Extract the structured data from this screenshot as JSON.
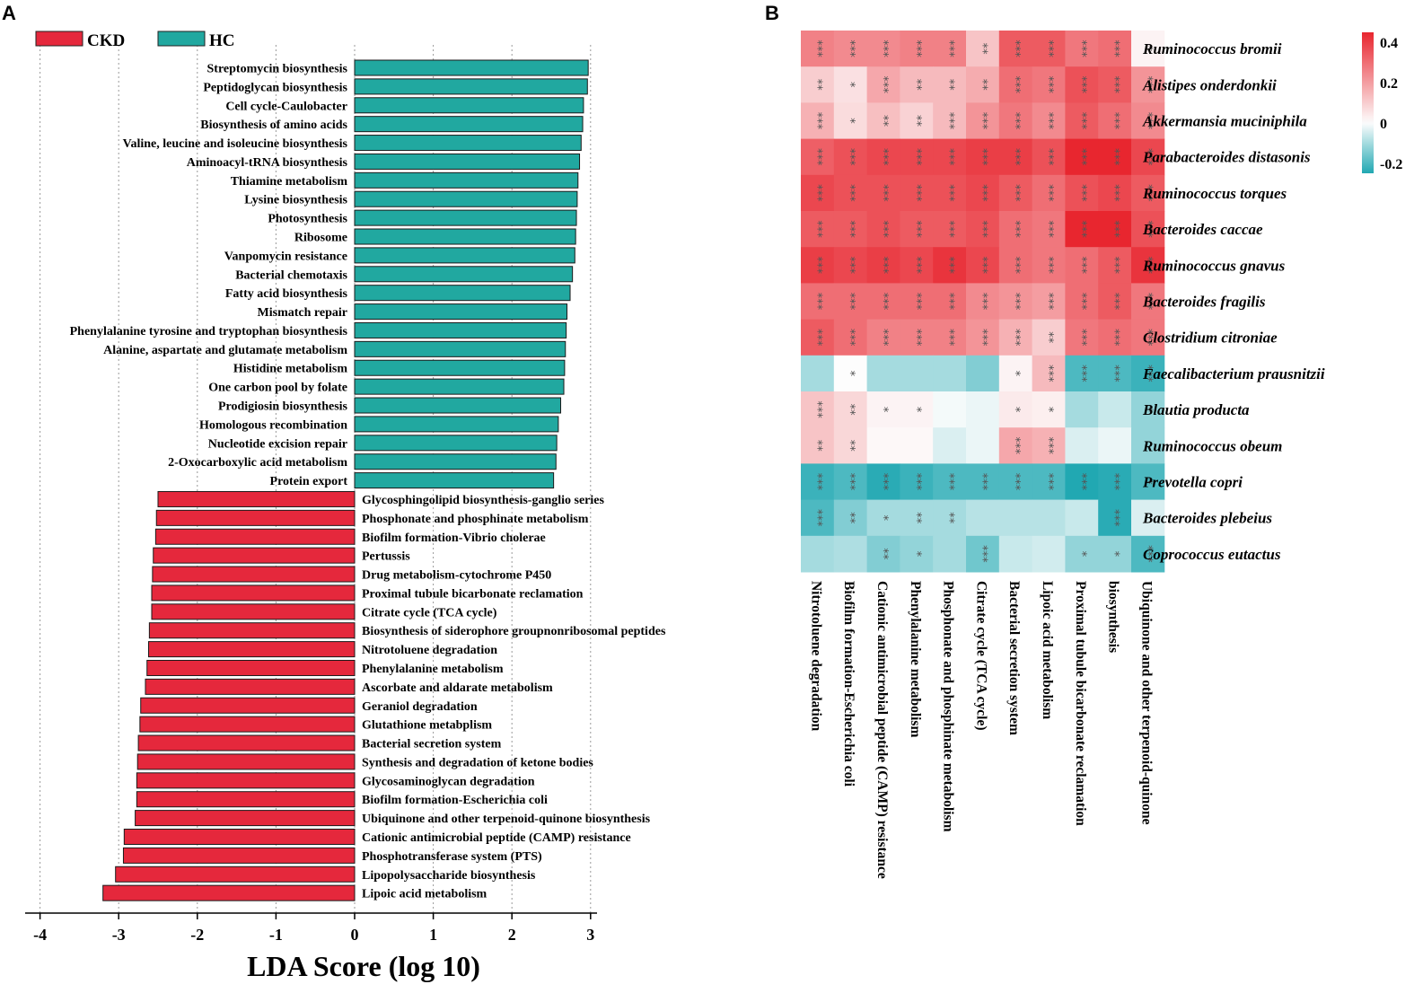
{
  "panels": {
    "a_letter": "A",
    "b_letter": "B"
  },
  "colors": {
    "ckd": "#e5283c",
    "hc": "#21a8a0",
    "heat_high": "#e8262f",
    "heat_mid": "#fdfdfd",
    "heat_low": "#21a8b2"
  },
  "chart_data": [
    {
      "type": "bar",
      "orientation": "horizontal",
      "title": "",
      "xlabel": "LDA Score (log 10)",
      "xlim": [
        -4,
        3
      ],
      "xticks": [
        "-4",
        "-3",
        "-2",
        "-1",
        "0",
        "1",
        "2",
        "3"
      ],
      "grid": "vertical dotted",
      "legend": {
        "position": "top-left",
        "entries": [
          {
            "name": "CKD",
            "color": "#e5283c"
          },
          {
            "name": "HC",
            "color": "#21a8a0"
          }
        ]
      },
      "series": [
        {
          "name": "HC",
          "categories": [
            "Streptomycin biosynthesis",
            "Peptidoglycan biosynthesis",
            "Cell cycle-Caulobacter",
            "Biosynthesis of amino acids",
            "Valine, leucine and isoleucine biosynthesis",
            "Aminoacyl-tRNA biosynthesis",
            "Thiamine metabolism",
            "Lysine biosynthesis",
            "Photosynthesis",
            "Ribosome",
            "Vanpomycin resistance",
            "Bacterial chemotaxis",
            "Fatty acid biosynthesis",
            "Mismatch repair",
            "Phenylalanine tyrosine and tryptophan biosynthesis",
            "Alanine, aspartate and glutamate metabolism",
            "Histidine metabolism",
            "One carbon pool by folate",
            "Prodigiosin biosynthesis",
            "Homologous recombination",
            "Nucleotide excision repair",
            "2-Oxocarboxylic acid metabolism",
            "Protein export"
          ],
          "values": [
            2.97,
            2.96,
            2.91,
            2.9,
            2.88,
            2.86,
            2.84,
            2.83,
            2.82,
            2.81,
            2.8,
            2.77,
            2.74,
            2.7,
            2.69,
            2.68,
            2.67,
            2.66,
            2.62,
            2.59,
            2.57,
            2.56,
            2.53
          ]
        },
        {
          "name": "CKD",
          "categories": [
            "Glycosphingolipid biosynthesis-ganglio series",
            "Phosphonate and phosphinate metabolism",
            "Biofilm formation-Vibrio cholerae",
            "Pertussis",
            "Drug metabolism-cytochrome P450",
            "Proximal tubule bicarbonate reclamation",
            "Citrate cycle (TCA cycle)",
            "Biosynthesis of siderophore groupnonribosomal peptides",
            "Nitrotoluene degradation",
            "Phenylalanine metabolism",
            "Ascorbate and aldarate metabolism",
            "Geraniol degradation",
            "Glutathione metabplism",
            "Bacterial secretion system",
            "Synthesis and degradation of ketone bodies",
            "Glycosaminoglycan degradation",
            "Biofilm formation-Escherichia coli",
            "Ubiquinone and other terpenoid-quinone biosynthesis",
            "Cationic antimicrobial peptide (CAMP) resistance",
            "Phosphotransferase system (PTS)",
            "Lipopolysaccharide biosynthesis",
            "Lipoic acid metabolism"
          ],
          "values": [
            -2.5,
            -2.52,
            -2.53,
            -2.56,
            -2.57,
            -2.58,
            -2.58,
            -2.61,
            -2.62,
            -2.64,
            -2.66,
            -2.72,
            -2.73,
            -2.75,
            -2.76,
            -2.77,
            -2.77,
            -2.79,
            -2.93,
            -2.94,
            -3.04,
            -3.2
          ]
        }
      ]
    },
    {
      "type": "heatmap",
      "title": "",
      "rows": [
        "Ruminococcus bromii",
        "Alistipes onderdonkii",
        "Akkermansia muciniphila",
        "Parabacteroides distasonis",
        "Ruminococcus torques",
        "Bacteroides caccae",
        "Ruminococcus gnavus",
        "Bacteroides fragilis",
        "Clostridium citroniae",
        "Faecalibacterium prausnitzii",
        "Blautia producta",
        "Ruminococcus obeum",
        "Prevotella copri",
        "Bacteroides plebeius",
        "Coprococcus eutactus"
      ],
      "columns": [
        "Nitrotoluene degradation",
        "Biofilm formation-Escherichia coli",
        "Cationic antimicrobial peptide (CAMP) resistance",
        "Phenylalanine metabolism",
        "Phosphonate and phosphinate metabolism",
        "Citrate cycle (TCA cycle)",
        "Bacterial secretion system",
        "Lipoic acid metabolism",
        "Proximal tubule bicarbonate reclamation",
        "biosynthesis",
        "Ubiquinone and other terpenoid-quinone"
      ],
      "values": [
        [
          0.26,
          0.24,
          0.24,
          0.26,
          0.26,
          0.12,
          0.34,
          0.34,
          0.28,
          0.3,
          0.02
        ],
        [
          0.1,
          0.06,
          0.18,
          0.14,
          0.14,
          0.17,
          0.3,
          0.28,
          0.36,
          0.34,
          0.22
        ],
        [
          0.16,
          0.07,
          0.13,
          0.09,
          0.14,
          0.22,
          0.28,
          0.24,
          0.34,
          0.3,
          0.24
        ],
        [
          0.33,
          0.36,
          0.38,
          0.38,
          0.38,
          0.4,
          0.4,
          0.36,
          0.46,
          0.48,
          0.38
        ],
        [
          0.38,
          0.36,
          0.36,
          0.36,
          0.36,
          0.38,
          0.34,
          0.3,
          0.36,
          0.38,
          0.34
        ],
        [
          0.34,
          0.34,
          0.36,
          0.34,
          0.34,
          0.36,
          0.3,
          0.28,
          0.46,
          0.48,
          0.36
        ],
        [
          0.4,
          0.38,
          0.4,
          0.38,
          0.42,
          0.38,
          0.3,
          0.28,
          0.3,
          0.34,
          0.42
        ],
        [
          0.3,
          0.3,
          0.3,
          0.3,
          0.3,
          0.24,
          0.22,
          0.2,
          0.3,
          0.34,
          0.28
        ],
        [
          0.34,
          0.3,
          0.26,
          0.26,
          0.26,
          0.22,
          0.16,
          0.1,
          0.28,
          0.3,
          0.28
        ],
        [
          -0.1,
          0.0,
          -0.1,
          -0.1,
          -0.1,
          -0.14,
          0.02,
          0.14,
          -0.2,
          -0.2,
          -0.22
        ],
        [
          0.12,
          0.08,
          0.02,
          0.02,
          -0.01,
          -0.02,
          0.04,
          0.03,
          -0.1,
          -0.06,
          -0.12
        ],
        [
          0.12,
          0.08,
          0.01,
          0.01,
          -0.04,
          -0.02,
          0.18,
          0.16,
          -0.04,
          -0.02,
          -0.12
        ],
        [
          -0.22,
          -0.2,
          -0.24,
          -0.22,
          -0.2,
          -0.2,
          -0.2,
          -0.2,
          -0.28,
          -0.24,
          -0.2
        ],
        [
          -0.2,
          -0.14,
          -0.1,
          -0.1,
          -0.1,
          -0.08,
          -0.08,
          -0.08,
          -0.06,
          -0.24,
          -0.04
        ],
        [
          -0.1,
          -0.09,
          -0.14,
          -0.12,
          -0.1,
          -0.16,
          -0.06,
          -0.05,
          -0.12,
          -0.12,
          -0.2
        ]
      ],
      "significance": [
        [
          "***",
          "***",
          "***",
          "***",
          "***",
          "**",
          "***",
          "***",
          "***",
          "***",
          "*"
        ],
        [
          "**",
          "*",
          "***",
          "**",
          "**",
          "**",
          "***",
          "***",
          "***",
          "***",
          "***"
        ],
        [
          "***",
          "*",
          "**",
          "**",
          "***",
          "***",
          "***",
          "***",
          "***",
          "***",
          "***"
        ],
        [
          "***",
          "***",
          "***",
          "***",
          "***",
          "***",
          "***",
          "***",
          "***",
          "***",
          "***"
        ],
        [
          "***",
          "***",
          "***",
          "***",
          "***",
          "***",
          "***",
          "***",
          "***",
          "***",
          "***"
        ],
        [
          "***",
          "***",
          "***",
          "***",
          "***",
          "***",
          "***",
          "***",
          "***",
          "***",
          "***"
        ],
        [
          "***",
          "***",
          "***",
          "***",
          "***",
          "***",
          "***",
          "***",
          "***",
          "***",
          "***"
        ],
        [
          "***",
          "***",
          "***",
          "***",
          "***",
          "***",
          "***",
          "***",
          "***",
          "***",
          "***"
        ],
        [
          "***",
          "***",
          "***",
          "***",
          "***",
          "***",
          "***",
          "**",
          "***",
          "***",
          "***"
        ],
        [
          "",
          "*",
          "",
          "",
          "",
          "",
          "*",
          "***",
          "***",
          "***",
          "***"
        ],
        [
          "***",
          "**",
          "*",
          "*",
          "",
          "",
          "*",
          "*",
          "",
          "",
          "*"
        ],
        [
          "**",
          "**",
          "",
          "",
          "",
          "",
          "***",
          "***",
          "",
          "",
          ""
        ],
        [
          "***",
          "***",
          "***",
          "***",
          "***",
          "***",
          "***",
          "***",
          "***",
          "***",
          "*"
        ],
        [
          "***",
          "**",
          "*",
          "**",
          "**",
          "",
          "",
          "",
          "",
          "***",
          ""
        ],
        [
          "",
          "",
          "**",
          "*",
          "",
          "***",
          "",
          "",
          "*",
          "*",
          "***"
        ]
      ],
      "colorbar": {
        "range": [
          -0.25,
          0.45
        ],
        "ticks": [
          "0.4",
          "0.2",
          "0",
          "-0.2"
        ],
        "tick_values": [
          0.4,
          0.2,
          0,
          -0.2
        ],
        "position": "right"
      }
    }
  ]
}
